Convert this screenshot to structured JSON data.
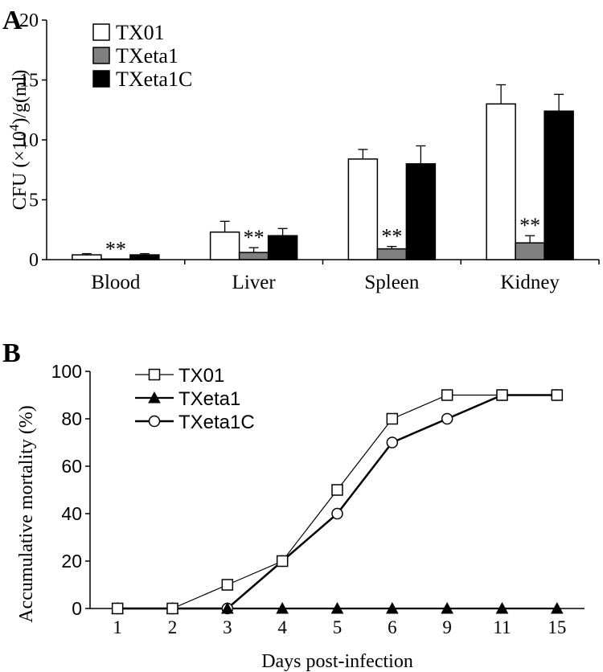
{
  "chart_data": [
    {
      "panel": "A",
      "type": "bar",
      "ylabel_parts": {
        "pre": "CFU (×10",
        "sup": "4",
        "post": ")/g(ml)"
      },
      "categories": [
        "Blood",
        "Liver",
        "Spleen",
        "Kidney"
      ],
      "ylim": [
        0,
        20
      ],
      "yticks": [
        0,
        5,
        10,
        15,
        20
      ],
      "legend_position": "top-left",
      "series": [
        {
          "name": "TX01",
          "color": "#ffffff",
          "values": [
            0.4,
            2.3,
            8.4,
            13.0
          ],
          "errors": [
            0.1,
            0.9,
            0.8,
            1.6
          ]
        },
        {
          "name": "TXeta1",
          "color": "#808080",
          "values": [
            0.05,
            0.6,
            0.9,
            1.4
          ],
          "errors": [
            0.0,
            0.4,
            0.2,
            0.6
          ]
        },
        {
          "name": "TXeta1C",
          "color": "#000000",
          "values": [
            0.4,
            2.0,
            8.0,
            12.4
          ],
          "errors": [
            0.1,
            0.6,
            1.5,
            1.4
          ]
        }
      ],
      "annotations": [
        {
          "category": "Blood",
          "series": "TXeta1",
          "text": "**"
        },
        {
          "category": "Liver",
          "series": "TXeta1",
          "text": "**"
        },
        {
          "category": "Spleen",
          "series": "TXeta1",
          "text": "**"
        },
        {
          "category": "Kidney",
          "series": "TXeta1",
          "text": "**"
        }
      ]
    },
    {
      "panel": "B",
      "type": "line",
      "xlabel": "Days post-infection",
      "ylabel": "Accumulative mortality (%)",
      "x": [
        "1",
        "2",
        "3",
        "4",
        "5",
        "6",
        "9",
        "11",
        "15"
      ],
      "ylim": [
        0,
        100
      ],
      "yticks": [
        0,
        20,
        40,
        60,
        80,
        100
      ],
      "legend_position": "top-left",
      "series": [
        {
          "name": "TX01",
          "marker": "square",
          "values": [
            0,
            0,
            10,
            20,
            50,
            80,
            90,
            90,
            90
          ]
        },
        {
          "name": "TXeta1",
          "marker": "triangle",
          "values": [
            0,
            0,
            0,
            0,
            0,
            0,
            0,
            0,
            0
          ]
        },
        {
          "name": "TXeta1C",
          "marker": "circle",
          "values": [
            0,
            0,
            0,
            20,
            40,
            70,
            80,
            90,
            90
          ]
        }
      ]
    }
  ]
}
